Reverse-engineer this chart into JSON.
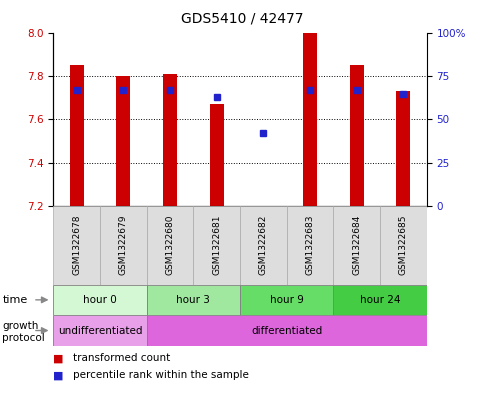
{
  "title": "GDS5410 / 42477",
  "samples": [
    "GSM1322678",
    "GSM1322679",
    "GSM1322680",
    "GSM1322681",
    "GSM1322682",
    "GSM1322683",
    "GSM1322684",
    "GSM1322685"
  ],
  "transformed_counts": [
    7.85,
    7.8,
    7.81,
    7.67,
    7.2,
    8.0,
    7.85,
    7.73
  ],
  "percentile_ranks": [
    67,
    67,
    67,
    63,
    42,
    67,
    67,
    65
  ],
  "y_min": 7.2,
  "y_max": 8.0,
  "y_ticks": [
    7.2,
    7.4,
    7.6,
    7.8,
    8.0
  ],
  "y2_ticks": [
    0,
    25,
    50,
    75,
    100
  ],
  "y2_tick_labels": [
    "0",
    "25",
    "50",
    "75",
    "100%"
  ],
  "bar_color": "#cc0000",
  "dot_color": "#2222cc",
  "time_groups": [
    {
      "label": "hour 0",
      "start": 0,
      "end": 2,
      "color": "#d4f7d4"
    },
    {
      "label": "hour 3",
      "start": 2,
      "end": 4,
      "color": "#a0e8a0"
    },
    {
      "label": "hour 9",
      "start": 4,
      "end": 6,
      "color": "#66dd66"
    },
    {
      "label": "hour 24",
      "start": 6,
      "end": 8,
      "color": "#44cc44"
    }
  ],
  "growth_protocol_groups": [
    {
      "label": "undifferentiated",
      "start": 0,
      "end": 2,
      "color": "#e8a0e8"
    },
    {
      "label": "differentiated",
      "start": 2,
      "end": 8,
      "color": "#dd66dd"
    }
  ],
  "legend_items": [
    {
      "color": "#cc0000",
      "label": "transformed count"
    },
    {
      "color": "#2222cc",
      "label": "percentile rank within the sample"
    }
  ],
  "bg_color": "#ffffff",
  "plot_bg_color": "#ffffff",
  "label_color_left": "#cc0000",
  "label_color_right": "#2222cc",
  "sample_box_color": "#dddddd",
  "sample_box_edge": "#aaaaaa"
}
